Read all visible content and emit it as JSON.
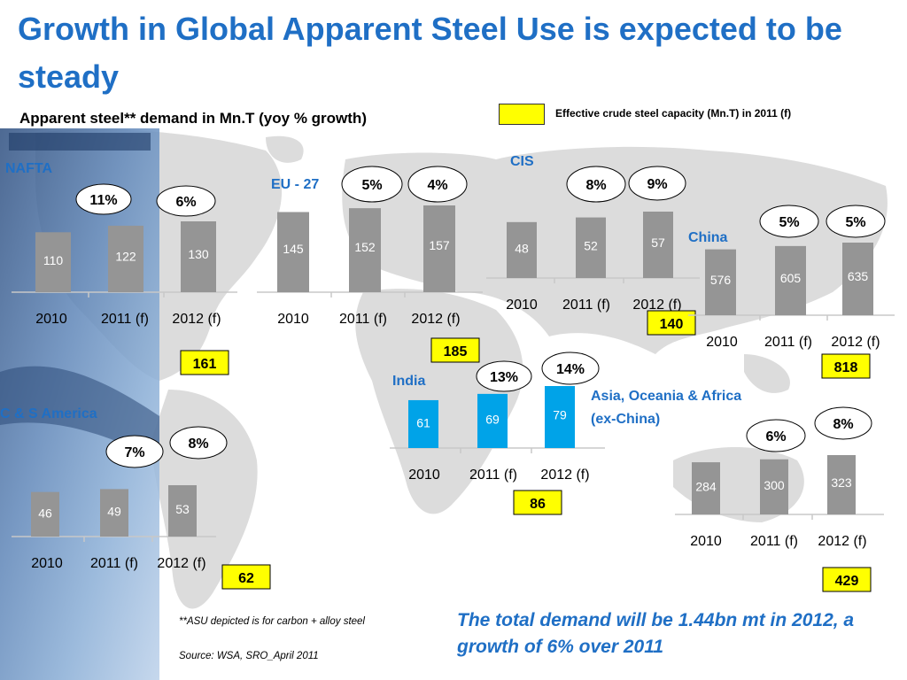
{
  "title": "Growth in Global Apparent Steel Use is expected to be steady",
  "subtitle": "Apparent steel** demand in Mn.T (yoy % growth)",
  "legend": {
    "label": "Effective crude steel capacity (Mn.T) in 2011 (f)",
    "color": "#ffff00"
  },
  "footnote": "**ASU depicted is for carbon + alloy steel",
  "source": "Source: WSA, SRO_April 2011",
  "note": "The total demand will be 1.44bn mt in 2012, a growth of 6% over 2011",
  "colors": {
    "title": "#1f6fc5",
    "bar": "#959595",
    "bar_india": "#00a3e8",
    "capacity": "#ffff00"
  },
  "chart_data": [
    {
      "type": "bar",
      "region": "NAFTA",
      "categories": [
        "2010",
        "2011 (f)",
        "2012 (f)"
      ],
      "values": [
        110,
        122,
        130
      ],
      "growth": [
        "11%",
        "6%"
      ],
      "capacity": "161"
    },
    {
      "type": "bar",
      "region": "EU - 27",
      "categories": [
        "2010",
        "2011 (f)",
        "2012 (f)"
      ],
      "values": [
        145,
        152,
        157
      ],
      "growth": [
        "5%",
        "4%"
      ],
      "capacity": "185"
    },
    {
      "type": "bar",
      "region": "CIS",
      "categories": [
        "2010",
        "2011 (f)",
        "2012 (f)"
      ],
      "values": [
        48,
        52,
        57
      ],
      "growth": [
        "8%",
        "9%"
      ],
      "capacity": "140"
    },
    {
      "type": "bar",
      "region": "China",
      "categories": [
        "2010",
        "2011 (f)",
        "2012 (f)"
      ],
      "values": [
        576,
        605,
        635
      ],
      "growth": [
        "5%",
        "5%"
      ],
      "capacity": "818"
    },
    {
      "type": "bar",
      "region": "India",
      "categories": [
        "2010",
        "2011 (f)",
        "2012 (f)"
      ],
      "values": [
        61,
        69,
        79
      ],
      "growth": [
        "13%",
        "14%"
      ],
      "capacity": "86"
    },
    {
      "type": "bar",
      "region": "C & S America",
      "categories": [
        "2010",
        "2011 (f)",
        "2012 (f)"
      ],
      "values": [
        46,
        49,
        53
      ],
      "growth": [
        "7%",
        "8%"
      ],
      "capacity": "62"
    },
    {
      "type": "bar",
      "region": "Asia, Oceania & Africa (ex-China)",
      "categories": [
        "2010",
        "2011 (f)",
        "2012 (f)"
      ],
      "values": [
        284,
        300,
        323
      ],
      "growth": [
        "6%",
        "8%"
      ],
      "capacity": "429"
    }
  ]
}
